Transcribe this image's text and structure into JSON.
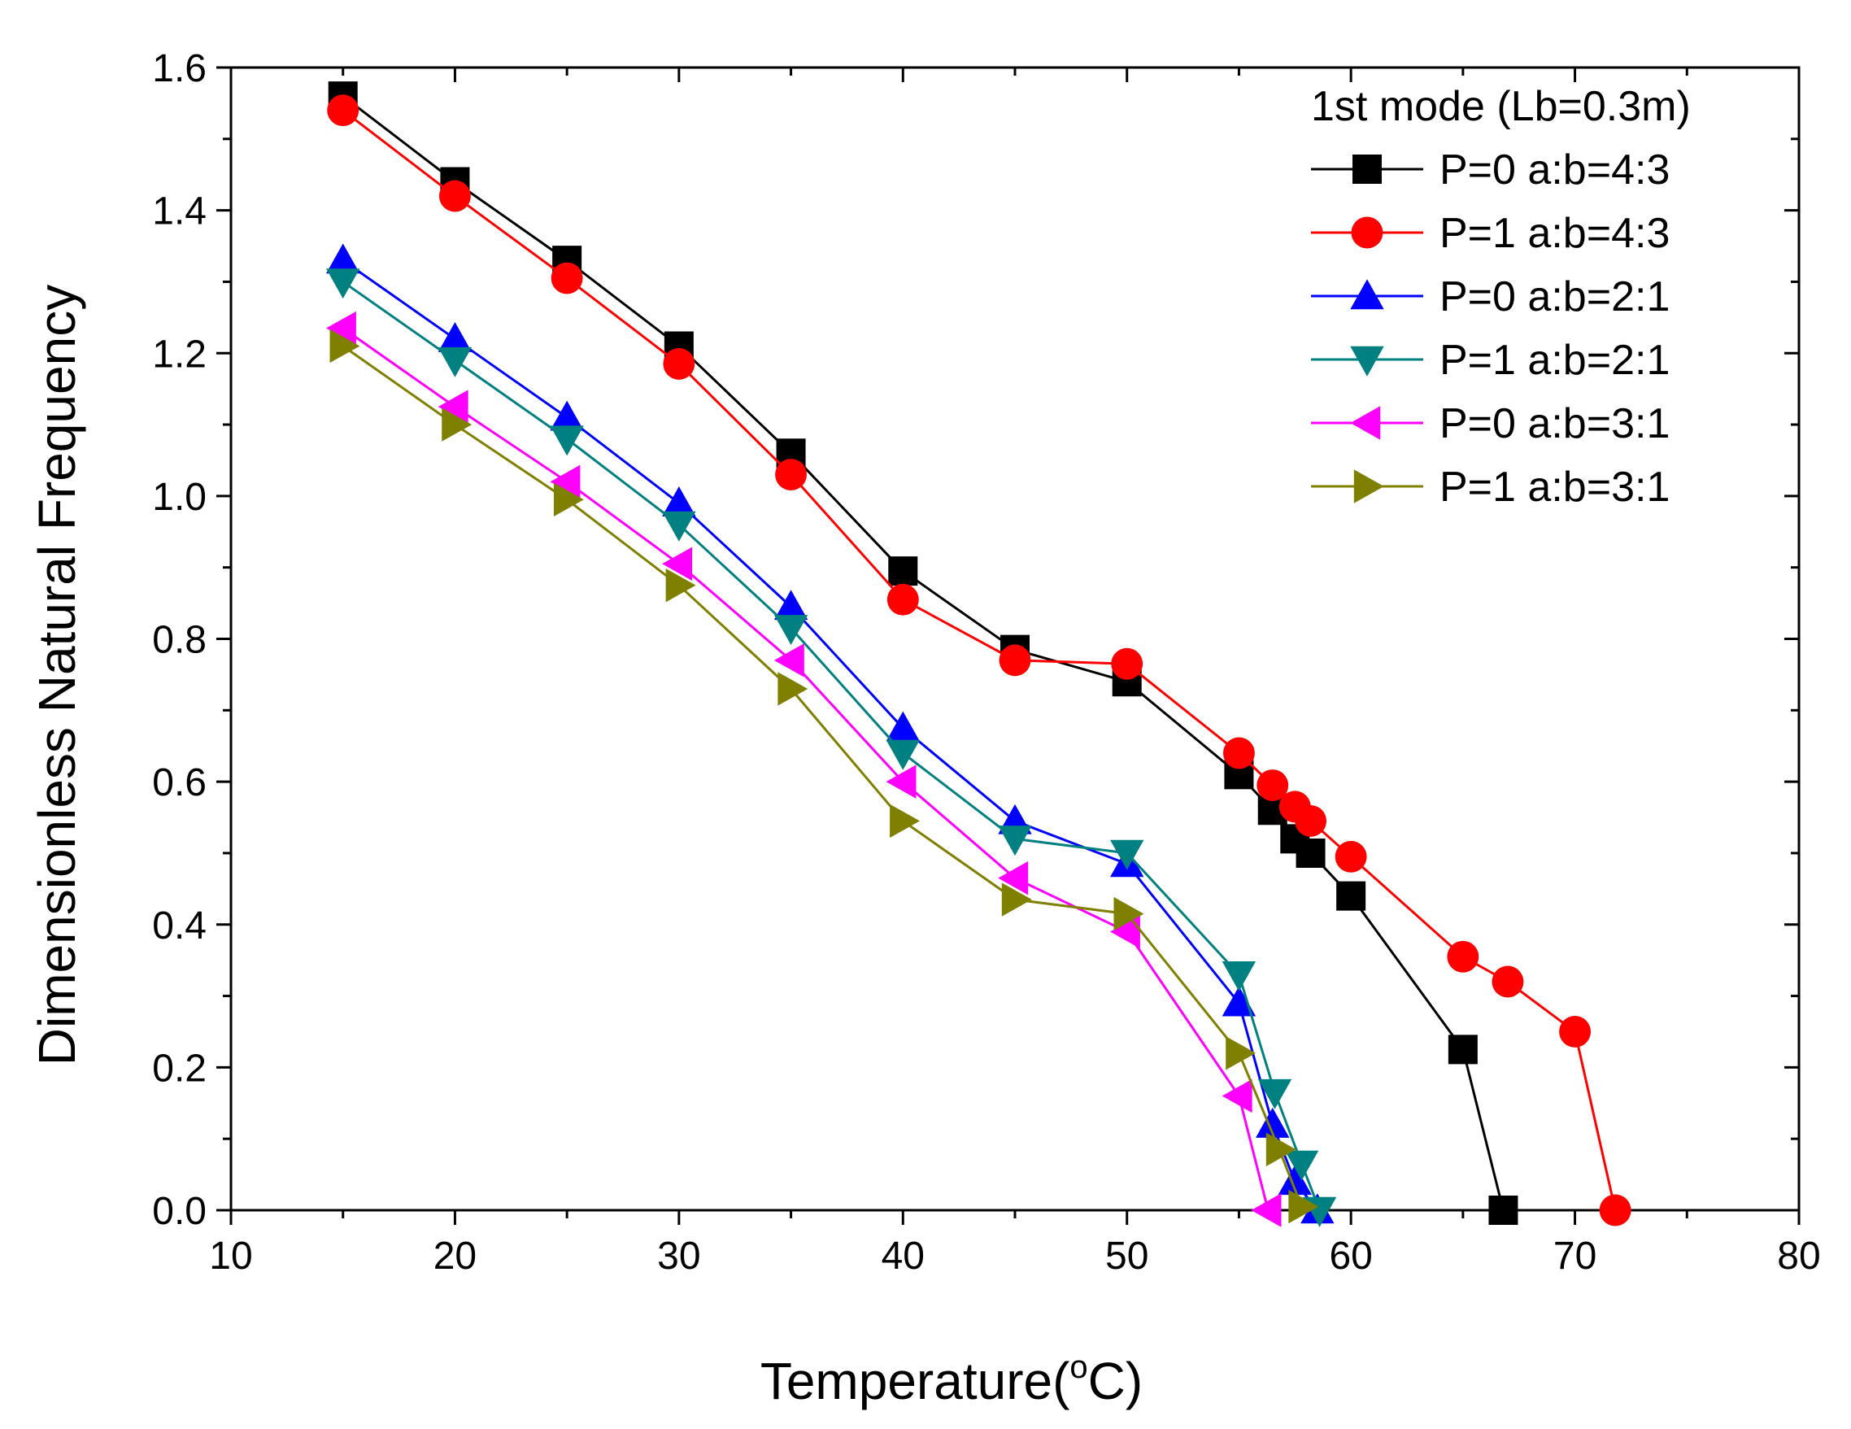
{
  "chart_data": {
    "type": "line",
    "title": "",
    "xlabel": "Temperature(°C)",
    "xlabel_main": "Temperature(",
    "xlabel_degree": "o",
    "xlabel_unit": "C)",
    "ylabel": "Dimensionless Natural Frequency",
    "xlim": [
      10,
      80
    ],
    "ylim": [
      0.0,
      1.6
    ],
    "xticks": [
      10,
      20,
      30,
      40,
      50,
      60,
      70,
      80
    ],
    "yticks": [
      0.0,
      0.2,
      0.4,
      0.6,
      0.8,
      1.0,
      1.2,
      1.4,
      1.6
    ],
    "xtick_labels": [
      "10",
      "20",
      "30",
      "40",
      "50",
      "60",
      "70",
      "80"
    ],
    "ytick_labels": [
      "0.0",
      "0.2",
      "0.4",
      "0.6",
      "0.8",
      "1.0",
      "1.2",
      "1.4",
      "1.6"
    ],
    "grid": false,
    "legend_title": "1st mode (Lb=0.3m)",
    "legend_position": "top-right",
    "series": [
      {
        "name": "P=0 a:b=4:3",
        "color": "#000000",
        "marker": "square",
        "x": [
          15,
          20,
          25,
          30,
          35,
          40,
          45,
          50,
          55,
          56.5,
          57.5,
          58.2,
          60,
          65,
          66.8
        ],
        "y": [
          1.56,
          1.44,
          1.33,
          1.21,
          1.06,
          0.895,
          0.785,
          0.74,
          0.61,
          0.56,
          0.52,
          0.5,
          0.44,
          0.225,
          0.0
        ]
      },
      {
        "name": "P=1 a:b=4:3",
        "color": "#ff0000",
        "marker": "circle",
        "x": [
          15,
          20,
          25,
          30,
          35,
          40,
          45,
          50,
          55,
          56.5,
          57.5,
          58.2,
          60,
          65,
          67,
          70,
          71.8
        ],
        "y": [
          1.54,
          1.42,
          1.305,
          1.185,
          1.03,
          0.855,
          0.77,
          0.765,
          0.64,
          0.595,
          0.565,
          0.545,
          0.495,
          0.355,
          0.32,
          0.25,
          0.0
        ]
      },
      {
        "name": "P=0 a:b=2:1",
        "color": "#0000ff",
        "marker": "triangle-up",
        "x": [
          15,
          20,
          25,
          30,
          35,
          40,
          45,
          50,
          55,
          56.5,
          57.5,
          58.5
        ],
        "y": [
          1.33,
          1.22,
          1.11,
          0.99,
          0.845,
          0.675,
          0.545,
          0.485,
          0.29,
          0.12,
          0.04,
          0.0
        ]
      },
      {
        "name": "P=1 a:b=2:1",
        "color": "#008080",
        "marker": "triangle-down",
        "x": [
          15,
          20,
          25,
          30,
          35,
          40,
          45,
          50,
          55,
          56.6,
          57.8,
          58.6
        ],
        "y": [
          1.3,
          1.19,
          1.08,
          0.96,
          0.815,
          0.64,
          0.52,
          0.5,
          0.33,
          0.165,
          0.065,
          0.0
        ]
      },
      {
        "name": "P=0 a:b=3:1",
        "color": "#ff00ff",
        "marker": "triangle-left",
        "x": [
          15,
          20,
          25,
          30,
          35,
          40,
          45,
          50,
          55,
          56.3
        ],
        "y": [
          1.235,
          1.125,
          1.02,
          0.905,
          0.77,
          0.6,
          0.465,
          0.39,
          0.16,
          0.0
        ]
      },
      {
        "name": "P=1 a:b=3:1",
        "color": "#808000",
        "marker": "triangle-right",
        "x": [
          15,
          20,
          25,
          30,
          35,
          40,
          45,
          50,
          55,
          56.8,
          57.8
        ],
        "y": [
          1.21,
          1.1,
          0.995,
          0.875,
          0.73,
          0.545,
          0.435,
          0.415,
          0.22,
          0.085,
          0.005
        ]
      }
    ]
  }
}
